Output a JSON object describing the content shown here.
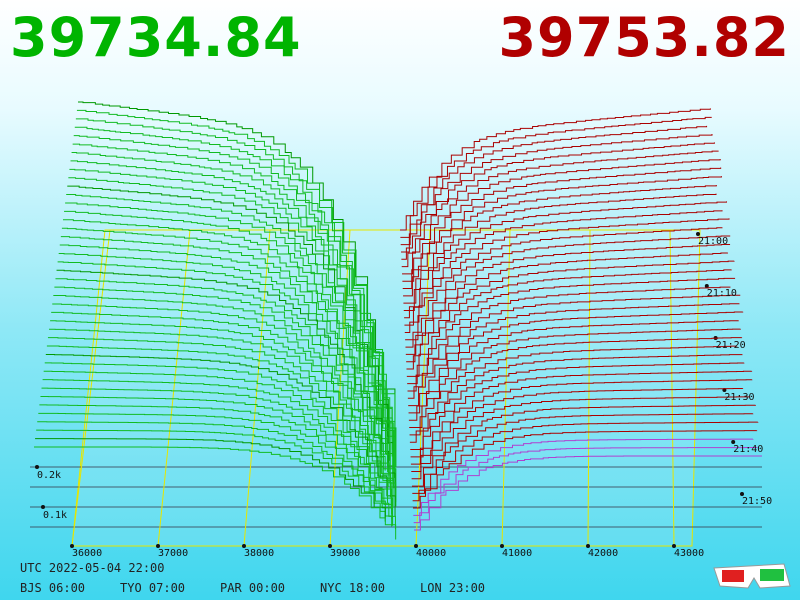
{
  "header": {
    "bid": "39734.84",
    "ask": "39753.82"
  },
  "price_axis": [
    "36000",
    "37000",
    "38000",
    "39000",
    "40000",
    "41000",
    "42000",
    "43000"
  ],
  "volume_axis": [
    "0.2k",
    "0.1k"
  ],
  "time_axis": [
    "21:00",
    "21:10",
    "21:20",
    "21:30",
    "21:40",
    "21:50"
  ],
  "footer": {
    "utc": "UTC 2022-05-04 22:00",
    "zones": [
      "BJS 06:00",
      "TYO 07:00",
      "PAR 00:00",
      "NYC 18:00",
      "LON 23:00"
    ]
  }
}
